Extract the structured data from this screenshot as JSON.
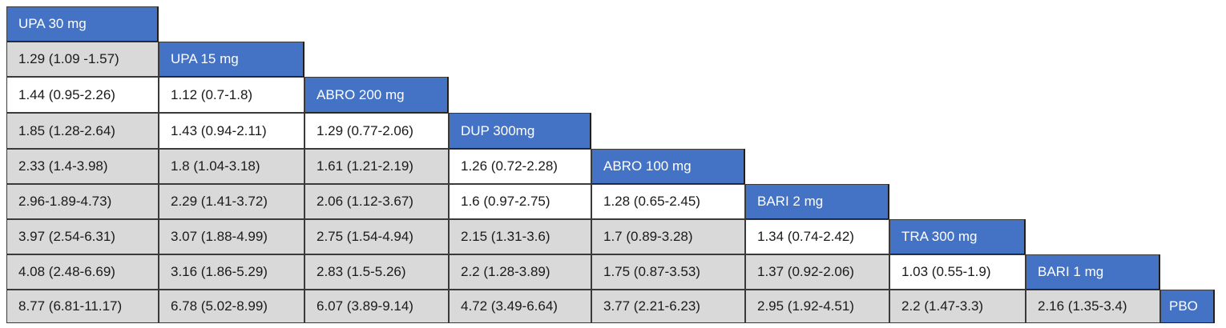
{
  "colors": {
    "header": "#4472c4",
    "shaded": "#d9d9d9",
    "plain": "#ffffff"
  },
  "treatments": [
    "UPA 30 mg",
    "UPA 15 mg",
    "ABRO 200 mg",
    "DUP 300mg",
    "ABRO 100 mg",
    "BARI 2 mg",
    "TRA 300 mg",
    "BARI 1 mg",
    "PBO"
  ],
  "rows": [
    [],
    [
      "1.29 (1.09 -1.57)"
    ],
    [
      "1.44 (0.95-2.26)",
      "1.12 (0.7-1.8)"
    ],
    [
      "1.85 (1.28-2.64)",
      "1.43 (0.94-2.11)",
      "1.29 (0.77-2.06)"
    ],
    [
      "2.33 (1.4-3.98)",
      "1.8 (1.04-3.18)",
      "1.61 (1.21-2.19)",
      "1.26 (0.72-2.28)"
    ],
    [
      "2.96-1.89-4.73)",
      "2.29 (1.41-3.72)",
      "2.06 (1.12-3.67)",
      "1.6 (0.97-2.75)",
      "1.28 (0.65-2.45)"
    ],
    [
      "3.97 (2.54-6.31)",
      "3.07 (1.88-4.99)",
      "2.75 (1.54-4.94)",
      "2.15 (1.31-3.6)",
      "1.7 (0.89-3.28)",
      "1.34 (0.74-2.42)"
    ],
    [
      "4.08 (2.48-6.69)",
      "3.16 (1.86-5.29)",
      "2.83 (1.5-5.26)",
      "2.2 (1.28-3.89)",
      "1.75 (0.87-3.53)",
      "1.37 (0.92-2.06)",
      "1.03 (0.55-1.9)"
    ],
    [
      "8.77 (6.81-11.17)",
      "6.78 (5.02-8.99)",
      "6.07 (3.89-9.14)",
      "4.72 (3.49-6.64)",
      "3.77 (2.21-6.23)",
      "2.95 (1.92-4.51)",
      "2.2 (1.47-3.3)",
      "2.16 (1.35-3.4)"
    ]
  ],
  "white_cells": [
    [
      2,
      0
    ],
    [
      2,
      1
    ],
    [
      3,
      1
    ],
    [
      3,
      2
    ],
    [
      4,
      3
    ],
    [
      5,
      3
    ],
    [
      5,
      4
    ],
    [
      6,
      5
    ],
    [
      7,
      6
    ]
  ]
}
